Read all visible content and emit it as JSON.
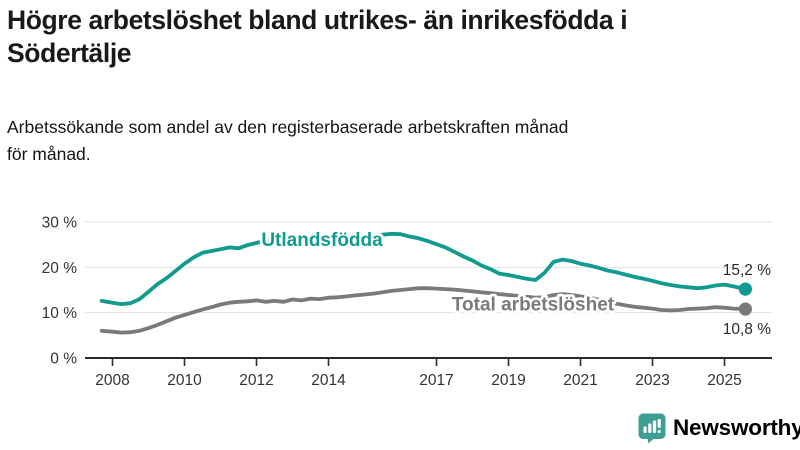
{
  "header": {
    "title_lines": [
      "Högre arbetslöshet bland utrikes- än inrikesfödda i",
      "Södertälje"
    ],
    "subtitle_lines": [
      "Arbetssökande som andel av den registerbaserade arbetskraften månad",
      "för månad."
    ]
  },
  "chart_data": {
    "type": "line",
    "title": "Högre arbetslöshet bland utrikes- än inrikesfödda i Södertälje",
    "subtitle": "Arbetssökande som andel av den registerbaserade arbetskraften månad för månad.",
    "xlabel": "",
    "ylabel": "",
    "grid": true,
    "ylim": [
      0,
      31
    ],
    "xlim": [
      2007.3,
      2026.3
    ],
    "yticks": [
      0,
      10,
      20,
      30
    ],
    "ytick_labels": [
      "0 %",
      "10 %",
      "20 %",
      "30 %"
    ],
    "xticks": [
      2008,
      2010,
      2012,
      2014,
      2017,
      2019,
      2021,
      2023,
      2025
    ],
    "xtick_labels": [
      "2008",
      "2010",
      "2012",
      "2014",
      "2017",
      "2019",
      "2021",
      "2023",
      "2025"
    ],
    "axis_color": "#2b2b2b",
    "grid_color": "#e2e2e2",
    "tick_label_color": "#333333",
    "end_label_color": "#2b2b2b",
    "x": [
      2007.7,
      2008,
      2008.25,
      2008.5,
      2008.75,
      2009,
      2009.25,
      2009.5,
      2009.75,
      2010,
      2010.25,
      2010.5,
      2010.75,
      2011,
      2011.25,
      2011.5,
      2011.75,
      2012,
      2012.25,
      2012.5,
      2012.75,
      2013,
      2013.25,
      2013.5,
      2013.75,
      2014,
      2014.25,
      2014.5,
      2014.75,
      2015,
      2015.25,
      2015.5,
      2015.75,
      2016,
      2016.25,
      2016.5,
      2016.75,
      2017,
      2017.25,
      2017.5,
      2017.75,
      2018,
      2018.25,
      2018.5,
      2018.75,
      2019,
      2019.25,
      2019.5,
      2019.75,
      2020,
      2020.25,
      2020.5,
      2020.75,
      2021,
      2021.25,
      2021.5,
      2021.75,
      2022,
      2022.25,
      2022.5,
      2022.75,
      2023,
      2023.25,
      2023.5,
      2023.75,
      2024,
      2024.25,
      2024.5,
      2024.75,
      2025,
      2025.25,
      2025.58
    ],
    "series": [
      {
        "name": "Utlandsfödda",
        "color": "#119b90",
        "end_value": 15.2,
        "end_label": "15,2 %",
        "end_label_side": "above",
        "label_at": {
          "x": 2013.82,
          "y": 26.1
        },
        "values": [
          12.6,
          12.2,
          11.9,
          12.1,
          13.0,
          14.6,
          16.3,
          17.6,
          19.2,
          20.8,
          22.2,
          23.2,
          23.6,
          24.0,
          24.4,
          24.2,
          24.9,
          25.4,
          25.9,
          26.1,
          26.0,
          26.4,
          26.2,
          26.6,
          26.5,
          26.8,
          26.6,
          26.9,
          27.0,
          27.1,
          26.9,
          27.2,
          27.4,
          27.3,
          26.8,
          26.4,
          25.8,
          25.1,
          24.4,
          23.4,
          22.4,
          21.5,
          20.4,
          19.6,
          18.6,
          18.3,
          17.9,
          17.5,
          17.2,
          18.8,
          21.2,
          21.7,
          21.4,
          20.8,
          20.4,
          19.9,
          19.3,
          18.9,
          18.4,
          17.9,
          17.5,
          17.0,
          16.5,
          16.1,
          15.8,
          15.6,
          15.4,
          15.6,
          16.0,
          16.2,
          15.8,
          15.2
        ]
      },
      {
        "name": "Total arbetslöshet",
        "color": "#7a7a7a",
        "end_value": 10.8,
        "end_label": "10,8 %",
        "end_label_side": "below",
        "label_at": {
          "x": 2019.68,
          "y": 11.9
        },
        "values": [
          6.0,
          5.8,
          5.6,
          5.7,
          6.0,
          6.6,
          7.3,
          8.1,
          8.9,
          9.5,
          10.1,
          10.7,
          11.2,
          11.8,
          12.2,
          12.4,
          12.5,
          12.7,
          12.4,
          12.6,
          12.4,
          12.9,
          12.7,
          13.1,
          13.0,
          13.3,
          13.4,
          13.6,
          13.8,
          14.0,
          14.2,
          14.5,
          14.8,
          15.0,
          15.2,
          15.4,
          15.4,
          15.3,
          15.2,
          15.1,
          14.9,
          14.7,
          14.5,
          14.3,
          14.1,
          13.9,
          13.7,
          13.5,
          13.3,
          13.4,
          13.9,
          14.1,
          13.9,
          13.6,
          13.3,
          12.9,
          12.4,
          12.0,
          11.6,
          11.3,
          11.1,
          10.9,
          10.6,
          10.5,
          10.6,
          10.8,
          10.9,
          11.0,
          11.2,
          11.1,
          10.9,
          10.8
        ]
      }
    ],
    "legend_position": "inline-labels"
  },
  "footer": {
    "brand": "Newsworthy",
    "brand_color": "#3a7e8c",
    "icon": "bar-chart-speech-bubble-icon",
    "icon_color": "#3f9e94"
  }
}
